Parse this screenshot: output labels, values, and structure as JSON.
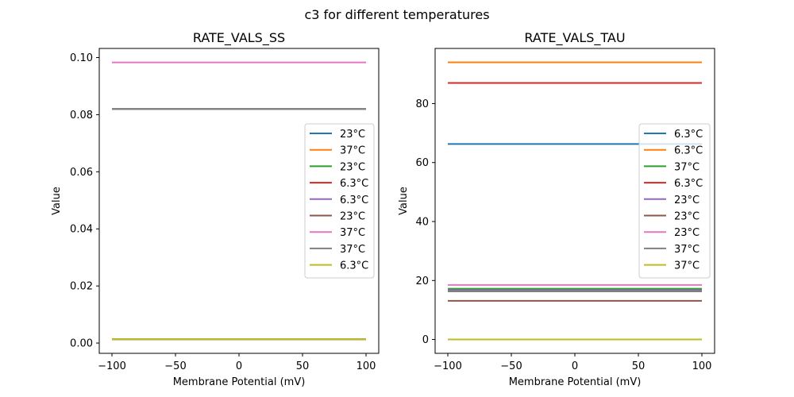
{
  "figure": {
    "suptitle": "c3 for different temperatures"
  },
  "chart_data": [
    {
      "type": "line",
      "title": "RATE_VALS_SS",
      "xlabel": "Membrane Potential (mV)",
      "ylabel": "Value",
      "xlim": [
        -110,
        110
      ],
      "ylim": [
        -0.0036,
        0.1032
      ],
      "xticks": [
        -100,
        -50,
        0,
        50,
        100
      ],
      "xtick_labels": [
        "−100",
        "−50",
        "0",
        "50",
        "100"
      ],
      "yticks": [
        0.0,
        0.02,
        0.04,
        0.06,
        0.08,
        0.1
      ],
      "ytick_labels": [
        "0.00",
        "0.02",
        "0.04",
        "0.06",
        "0.08",
        "0.10"
      ],
      "grid": false,
      "legend_position": "center-right",
      "x": [
        -100,
        100
      ],
      "series": [
        {
          "name": "23°C",
          "color": "#1f77b4",
          "values": [
            0.0013,
            0.0013
          ]
        },
        {
          "name": "37°C",
          "color": "#ff7f0e",
          "values": [
            0.0013,
            0.0013
          ]
        },
        {
          "name": "23°C",
          "color": "#2ca02c",
          "values": [
            0.082,
            0.082
          ]
        },
        {
          "name": "6.3°C",
          "color": "#d62728",
          "values": [
            0.0013,
            0.0013
          ]
        },
        {
          "name": "6.3°C",
          "color": "#9467bd",
          "values": [
            0.082,
            0.082
          ]
        },
        {
          "name": "23°C",
          "color": "#8c564b",
          "values": [
            0.0013,
            0.0013
          ]
        },
        {
          "name": "37°C",
          "color": "#e377c2",
          "values": [
            0.0983,
            0.0983
          ]
        },
        {
          "name": "37°C",
          "color": "#7f7f7f",
          "values": [
            0.082,
            0.082
          ]
        },
        {
          "name": "6.3°C",
          "color": "#bcbd22",
          "values": [
            0.0013,
            0.0013
          ]
        }
      ]
    },
    {
      "type": "line",
      "title": "RATE_VALS_TAU",
      "xlabel": "Membrane Potential (mV)",
      "ylabel": "Value",
      "xlim": [
        -110,
        110
      ],
      "ylim": [
        -4.7,
        98.7
      ],
      "xticks": [
        -100,
        -50,
        0,
        50,
        100
      ],
      "xtick_labels": [
        "−100",
        "−50",
        "0",
        "50",
        "100"
      ],
      "yticks": [
        0,
        20,
        40,
        60,
        80
      ],
      "ytick_labels": [
        "0",
        "20",
        "40",
        "60",
        "80"
      ],
      "grid": false,
      "legend_position": "center-right",
      "x": [
        -100,
        100
      ],
      "series": [
        {
          "name": "6.3°C",
          "color": "#1f77b4",
          "values": [
            66.3,
            66.3
          ]
        },
        {
          "name": "6.3°C",
          "color": "#ff7f0e",
          "values": [
            94.0,
            94.0
          ]
        },
        {
          "name": "37°C",
          "color": "#2ca02c",
          "values": [
            17.2,
            17.2
          ]
        },
        {
          "name": "6.3°C",
          "color": "#d62728",
          "values": [
            87.0,
            87.0
          ]
        },
        {
          "name": "23°C",
          "color": "#9467bd",
          "values": [
            16.7,
            16.7
          ]
        },
        {
          "name": "23°C",
          "color": "#8c564b",
          "values": [
            13.1,
            13.1
          ]
        },
        {
          "name": "23°C",
          "color": "#e377c2",
          "values": [
            18.5,
            18.5
          ]
        },
        {
          "name": "37°C",
          "color": "#7f7f7f",
          "values": [
            16.3,
            16.3
          ]
        },
        {
          "name": "37°C",
          "color": "#bcbd22",
          "values": [
            0.0,
            0.0
          ]
        }
      ]
    }
  ]
}
